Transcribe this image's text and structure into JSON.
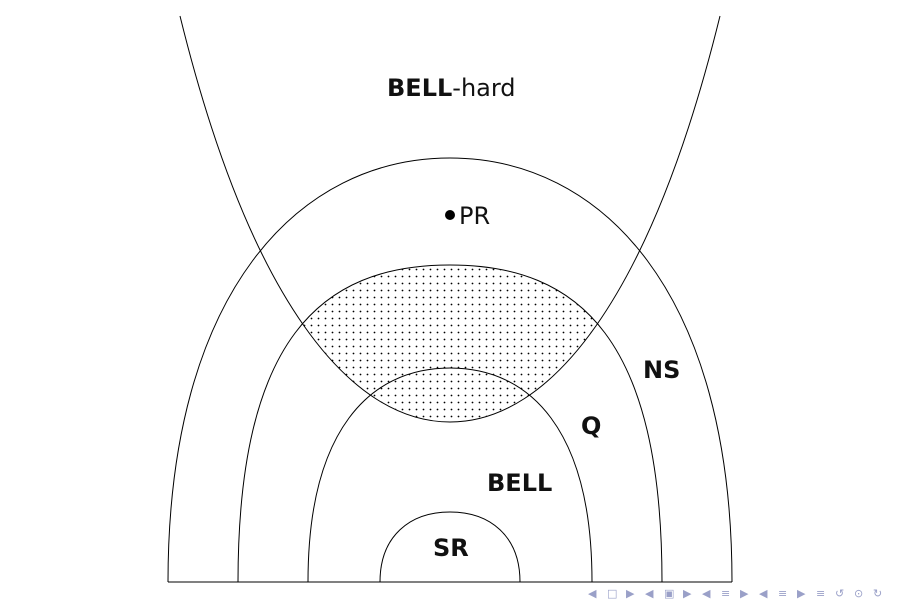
{
  "diagram": {
    "bellhard": {
      "bold": "BELL",
      "suffix": "-hard"
    },
    "pr_label": "PR",
    "ns_label": "NS",
    "q_label": "Q",
    "bell_label": "BELL",
    "sr_label": "SR"
  },
  "footer_nav": {
    "glyphs": [
      "◀",
      "□",
      "▶",
      "◀",
      "▣",
      "▶",
      "◀",
      "≡",
      "▶",
      "◀",
      "≡",
      "▶",
      "≡",
      "↺",
      "⊙",
      "↻"
    ]
  },
  "colors": {
    "stroke": "#000000",
    "dots": "#000000",
    "nav": "#9aa0c8"
  }
}
